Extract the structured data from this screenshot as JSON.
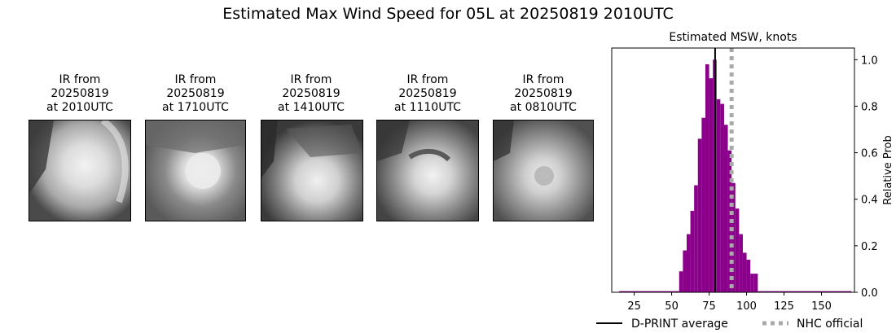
{
  "suptitle": "Estimated Max Wind Speed for 05L at 20250819 2010UTC",
  "ir_panels": [
    {
      "title_lines": [
        "IR from",
        "20250819",
        "at 2010UTC"
      ]
    },
    {
      "title_lines": [
        "IR from",
        "20250819",
        "at 1710UTC"
      ]
    },
    {
      "title_lines": [
        "IR from",
        "20250819",
        "at 1410UTC"
      ]
    },
    {
      "title_lines": [
        "IR from",
        "20250819",
        "at 1110UTC"
      ]
    },
    {
      "title_lines": [
        "IR from",
        "20250819",
        "at 0810UTC"
      ]
    }
  ],
  "chart_data": {
    "type": "bar",
    "title": "Estimated MSW, knots",
    "xlabel": "",
    "ylabel": "Relative Prob",
    "xlim": [
      10,
      172
    ],
    "ylim": [
      0,
      1.05
    ],
    "xticks": [
      25,
      50,
      75,
      100,
      125,
      150
    ],
    "yticks": [
      0.0,
      0.2,
      0.4,
      0.6,
      0.8,
      1.0
    ],
    "ytick_labels": [
      "0.0",
      "0.2",
      "0.4",
      "0.6",
      "0.8",
      "1.0"
    ],
    "bin_width": 2.5,
    "bins": [
      {
        "x0": 15,
        "x1": 55,
        "value": 0.005
      },
      {
        "x0": 55,
        "x1": 57.5,
        "value": 0.09
      },
      {
        "x0": 57.5,
        "x1": 60,
        "value": 0.18
      },
      {
        "x0": 60,
        "x1": 62.5,
        "value": 0.25
      },
      {
        "x0": 62.5,
        "x1": 65,
        "value": 0.35
      },
      {
        "x0": 65,
        "x1": 67.5,
        "value": 0.46
      },
      {
        "x0": 67.5,
        "x1": 70,
        "value": 0.66
      },
      {
        "x0": 70,
        "x1": 72.5,
        "value": 0.75
      },
      {
        "x0": 72.5,
        "x1": 75,
        "value": 0.98
      },
      {
        "x0": 75,
        "x1": 77.5,
        "value": 0.92
      },
      {
        "x0": 77.5,
        "x1": 80,
        "value": 1.0
      },
      {
        "x0": 80,
        "x1": 82.5,
        "value": 0.83
      },
      {
        "x0": 82.5,
        "x1": 85,
        "value": 0.81
      },
      {
        "x0": 85,
        "x1": 87.5,
        "value": 0.72
      },
      {
        "x0": 87.5,
        "x1": 90,
        "value": 0.61
      },
      {
        "x0": 90,
        "x1": 92.5,
        "value": 0.47
      },
      {
        "x0": 92.5,
        "x1": 95,
        "value": 0.36
      },
      {
        "x0": 95,
        "x1": 97.5,
        "value": 0.25
      },
      {
        "x0": 97.5,
        "x1": 100,
        "value": 0.17
      },
      {
        "x0": 100,
        "x1": 102.5,
        "value": 0.14
      },
      {
        "x0": 102.5,
        "x1": 105,
        "value": 0.08
      },
      {
        "x0": 105,
        "x1": 107.5,
        "value": 0.08
      },
      {
        "x0": 107.5,
        "x1": 170,
        "value": 0.005
      }
    ],
    "dprint_average": 79,
    "nhc_official": 90,
    "bar_color": "#8b008b",
    "nhc_color": "#aaaaaa",
    "legend": [
      {
        "label": "D-PRINT average",
        "style": "solid",
        "color": "#000000"
      },
      {
        "label": "NHC official",
        "style": "dotted",
        "color": "#aaaaaa"
      }
    ],
    "legend_position": "bottom"
  }
}
